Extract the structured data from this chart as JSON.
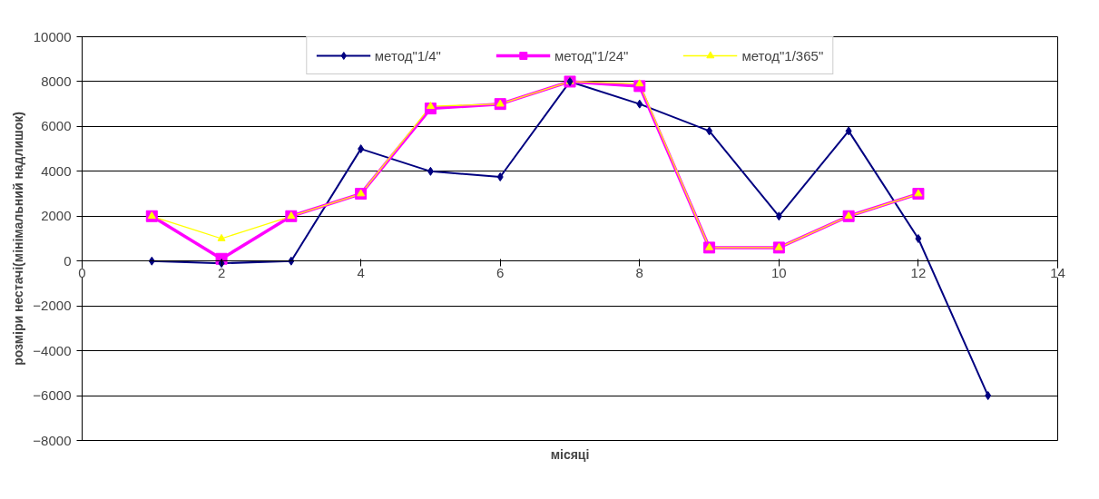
{
  "chart_data": {
    "type": "line",
    "xlabel": "місяці",
    "ylabel": "розміри нестачі(мінімальний надлишок)",
    "xlim": [
      0,
      14
    ],
    "xticks": [
      0,
      2,
      4,
      6,
      8,
      10,
      12,
      14
    ],
    "ylim": [
      -8000,
      10000
    ],
    "yticks": [
      -8000,
      -6000,
      -4000,
      -2000,
      0,
      2000,
      4000,
      6000,
      8000,
      10000
    ],
    "grid": "y",
    "legend": "top",
    "series": [
      {
        "name": "метод\"1/4\"",
        "color": "#000080",
        "marker": "diamond",
        "x": [
          1,
          2,
          3,
          4,
          5,
          6,
          7,
          8,
          9,
          10,
          11,
          12,
          13
        ],
        "values": [
          0,
          -100,
          0,
          5000,
          4000,
          3750,
          8000,
          7000,
          5800,
          2000,
          5800,
          1000,
          -6000
        ]
      },
      {
        "name": "метод\"1/24\"",
        "color": "#ff00ff",
        "marker": "square",
        "x": [
          1,
          2,
          3,
          4,
          5,
          6,
          7,
          8,
          9,
          10,
          11,
          12
        ],
        "values": [
          2000,
          100,
          2000,
          3000,
          6800,
          7000,
          8000,
          7800,
          600,
          600,
          2000,
          3000
        ]
      },
      {
        "name": "метод\"1/365\"",
        "color": "#ffff00",
        "marker": "triangle",
        "x": [
          1,
          2,
          3,
          4,
          5,
          6,
          7,
          8,
          9,
          10,
          11,
          12
        ],
        "values": [
          2000,
          1000,
          2000,
          3000,
          6900,
          7000,
          8000,
          7900,
          600,
          600,
          2000,
          3000
        ]
      }
    ]
  }
}
